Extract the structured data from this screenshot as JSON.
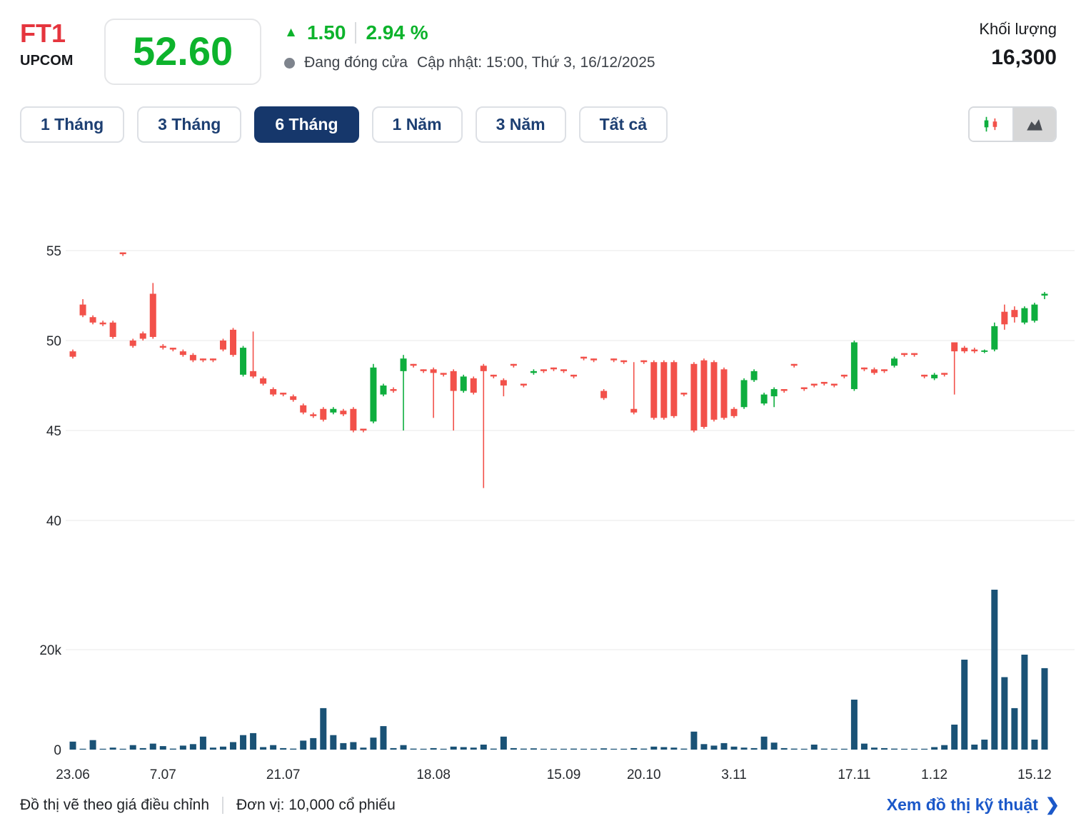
{
  "header": {
    "symbol": "FT1",
    "exchange": "UPCOM",
    "price": "52.60",
    "change": "1.50",
    "change_percent": "2.94 %",
    "status": "Đang đóng cửa",
    "updated": "Cập nhật: 15:00, Thứ 3, 16/12/2025",
    "volume_label": "Khối lượng",
    "volume_value": "16,300"
  },
  "icons": {
    "up_triangle": "▲",
    "chevron_right": "❯"
  },
  "tabs": {
    "active_index": 2,
    "items": [
      {
        "label": "1 Tháng"
      },
      {
        "label": "3 Tháng"
      },
      {
        "label": "6 Tháng"
      },
      {
        "label": "1 Năm"
      },
      {
        "label": "3 Năm"
      },
      {
        "label": "Tất cả"
      }
    ]
  },
  "chart_controls": {
    "buttons": [
      "candlestick-chart",
      "area-chart"
    ],
    "active": "area"
  },
  "chart_data": {
    "type": "candlestick",
    "title": "FT1 price history, 6 months (candlestick with volume)",
    "price_axis": {
      "ticks": [
        55,
        50,
        45,
        40
      ],
      "range": [
        40,
        56
      ]
    },
    "volume_axis": {
      "ticks": [
        "20k",
        "0"
      ],
      "range": [
        0,
        34000
      ]
    },
    "x_ticks": [
      {
        "label": "23.06",
        "index": 0
      },
      {
        "label": "7.07",
        "index": 9
      },
      {
        "label": "21.07",
        "index": 21
      },
      {
        "label": "18.08",
        "index": 36
      },
      {
        "label": "15.09",
        "index": 49
      },
      {
        "label": "20.10",
        "index": 57
      },
      {
        "label": "3.11",
        "index": 66
      },
      {
        "label": "17.11",
        "index": 78
      },
      {
        "label": "1.12",
        "index": 86
      },
      {
        "label": "15.12",
        "index": 96
      }
    ],
    "up_color": "#0eae3e",
    "down_color": "#f2514a",
    "volume_color": "#1a5276",
    "candles": [
      [
        49.4,
        49.5,
        49.0,
        49.1,
        1600
      ],
      [
        52.0,
        52.3,
        51.3,
        51.4,
        100
      ],
      [
        51.3,
        51.4,
        50.9,
        51.0,
        1900
      ],
      [
        51.0,
        51.1,
        50.8,
        50.9,
        150
      ],
      [
        51.0,
        51.1,
        50.1,
        50.2,
        400
      ],
      [
        54.9,
        54.9,
        54.7,
        54.8,
        100
      ],
      [
        50.0,
        50.1,
        49.6,
        49.7,
        900
      ],
      [
        50.4,
        50.5,
        50.0,
        50.1,
        300
      ],
      [
        52.6,
        53.2,
        50.1,
        50.2,
        1200
      ],
      [
        49.7,
        49.8,
        49.5,
        49.6,
        700
      ],
      [
        49.6,
        49.6,
        49.4,
        49.5,
        200
      ],
      [
        49.4,
        49.5,
        49.1,
        49.2,
        800
      ],
      [
        49.2,
        49.3,
        48.8,
        48.9,
        1100
      ],
      [
        49.0,
        49.0,
        48.8,
        48.9,
        2600
      ],
      [
        49.0,
        49.0,
        48.8,
        48.9,
        400
      ],
      [
        50.0,
        50.1,
        49.4,
        49.5,
        600
      ],
      [
        50.6,
        50.7,
        49.1,
        49.2,
        1500
      ],
      [
        48.1,
        49.7,
        48.0,
        49.6,
        2900
      ],
      [
        48.3,
        50.5,
        47.9,
        48.0,
        3300
      ],
      [
        47.9,
        48.0,
        47.5,
        47.6,
        500
      ],
      [
        47.3,
        47.4,
        46.9,
        47.0,
        900
      ],
      [
        47.1,
        47.1,
        46.9,
        47.0,
        300
      ],
      [
        46.9,
        47.0,
        46.6,
        46.7,
        200
      ],
      [
        46.4,
        46.5,
        45.9,
        46.0,
        1800
      ],
      [
        45.9,
        46.0,
        45.7,
        45.8,
        2300
      ],
      [
        46.2,
        46.3,
        45.5,
        45.6,
        8300
      ],
      [
        46.0,
        46.3,
        45.9,
        46.2,
        2900
      ],
      [
        46.1,
        46.2,
        45.8,
        45.9,
        1300
      ],
      [
        46.2,
        46.3,
        44.9,
        45.0,
        1500
      ],
      [
        45.1,
        45.1,
        44.9,
        45.0,
        400
      ],
      [
        45.5,
        48.7,
        45.4,
        48.5,
        2400
      ],
      [
        47.0,
        47.6,
        46.9,
        47.5,
        4700
      ],
      [
        47.3,
        47.4,
        47.1,
        47.2,
        300
      ],
      [
        48.3,
        49.2,
        45.0,
        49.0,
        900
      ],
      [
        48.7,
        48.7,
        48.5,
        48.6,
        200
      ],
      [
        48.4,
        48.4,
        48.2,
        48.3,
        150
      ],
      [
        48.4,
        48.5,
        45.7,
        48.2,
        300
      ],
      [
        48.2,
        48.2,
        48.0,
        48.1,
        150
      ],
      [
        48.3,
        48.4,
        45.0,
        47.2,
        600
      ],
      [
        47.2,
        48.1,
        47.1,
        48.0,
        500
      ],
      [
        47.9,
        48.0,
        47.0,
        47.1,
        400
      ],
      [
        48.6,
        48.7,
        41.8,
        48.3,
        1000
      ],
      [
        48.1,
        48.1,
        47.9,
        48.0,
        200
      ],
      [
        47.8,
        47.9,
        46.9,
        47.5,
        2600
      ],
      [
        48.7,
        48.7,
        48.5,
        48.6,
        300
      ],
      [
        47.6,
        47.6,
        47.4,
        47.5,
        200
      ],
      [
        48.2,
        48.4,
        48.1,
        48.3,
        250
      ],
      [
        48.4,
        48.4,
        48.2,
        48.3,
        100
      ],
      [
        48.5,
        48.5,
        48.3,
        48.4,
        150
      ],
      [
        48.4,
        48.4,
        48.2,
        48.3,
        100
      ],
      [
        48.1,
        48.1,
        47.9,
        48.0,
        200
      ],
      [
        49.1,
        49.1,
        48.9,
        49.0,
        100
      ],
      [
        49.0,
        49.0,
        48.8,
        48.9,
        100
      ],
      [
        47.2,
        47.3,
        46.7,
        46.8,
        250
      ],
      [
        49.0,
        49.0,
        48.8,
        48.9,
        100
      ],
      [
        48.9,
        48.9,
        48.7,
        48.8,
        150
      ],
      [
        46.2,
        48.8,
        45.9,
        46.0,
        300
      ],
      [
        48.9,
        48.9,
        48.7,
        48.8,
        200
      ],
      [
        48.8,
        48.9,
        45.6,
        45.7,
        600
      ],
      [
        48.8,
        48.9,
        45.6,
        45.7,
        500
      ],
      [
        48.8,
        48.9,
        45.7,
        45.8,
        400
      ],
      [
        47.1,
        47.1,
        46.9,
        47.0,
        200
      ],
      [
        48.7,
        48.8,
        44.9,
        45.0,
        3600
      ],
      [
        48.9,
        49.0,
        45.1,
        45.2,
        1100
      ],
      [
        48.8,
        48.9,
        45.5,
        45.6,
        800
      ],
      [
        48.4,
        48.5,
        45.6,
        45.7,
        1300
      ],
      [
        46.2,
        46.3,
        45.7,
        45.8,
        600
      ],
      [
        46.3,
        47.9,
        46.2,
        47.8,
        400
      ],
      [
        47.8,
        48.4,
        47.7,
        48.3,
        300
      ],
      [
        46.5,
        47.1,
        46.4,
        47.0,
        2600
      ],
      [
        46.9,
        47.4,
        46.3,
        47.3,
        1400
      ],
      [
        47.3,
        47.3,
        47.1,
        47.2,
        300
      ],
      [
        48.7,
        48.7,
        48.5,
        48.6,
        200
      ],
      [
        47.4,
        47.4,
        47.2,
        47.3,
        150
      ],
      [
        47.6,
        47.6,
        47.4,
        47.5,
        1000
      ],
      [
        47.7,
        47.7,
        47.5,
        47.6,
        200
      ],
      [
        47.6,
        47.6,
        47.4,
        47.5,
        100
      ],
      [
        48.1,
        48.1,
        47.9,
        48.0,
        150
      ],
      [
        47.3,
        50.0,
        47.2,
        49.9,
        10000
      ],
      [
        48.5,
        48.5,
        48.3,
        48.4,
        1200
      ],
      [
        48.4,
        48.5,
        48.1,
        48.2,
        400
      ],
      [
        48.4,
        48.4,
        48.2,
        48.3,
        300
      ],
      [
        48.6,
        49.1,
        48.5,
        49.0,
        200
      ],
      [
        49.3,
        49.3,
        49.1,
        49.2,
        100
      ],
      [
        49.3,
        49.3,
        49.1,
        49.2,
        150
      ],
      [
        48.1,
        48.1,
        47.9,
        48.0,
        100
      ],
      [
        47.9,
        48.2,
        47.8,
        48.1,
        500
      ],
      [
        48.2,
        48.2,
        48.0,
        48.1,
        900
      ],
      [
        49.9,
        49.9,
        47.0,
        49.4,
        5000
      ],
      [
        49.6,
        49.7,
        49.3,
        49.4,
        18000
      ],
      [
        49.5,
        49.6,
        49.3,
        49.4,
        1000
      ],
      [
        49.4,
        49.5,
        49.3,
        49.45,
        2000
      ],
      [
        49.5,
        51.0,
        49.4,
        50.8,
        32000
      ],
      [
        51.6,
        52.0,
        50.6,
        50.9,
        14500
      ],
      [
        51.7,
        51.9,
        51.0,
        51.3,
        8300
      ],
      [
        51.0,
        51.9,
        50.9,
        51.8,
        19000
      ],
      [
        51.1,
        52.1,
        51.0,
        52.0,
        2000
      ],
      [
        52.5,
        52.7,
        52.3,
        52.6,
        16300
      ]
    ]
  },
  "footer": {
    "note1": "Đồ thị vẽ theo giá điều chỉnh",
    "note2": "Đơn vị: 10,000 cổ phiếu",
    "link": "Xem đồ thị kỹ thuật"
  }
}
